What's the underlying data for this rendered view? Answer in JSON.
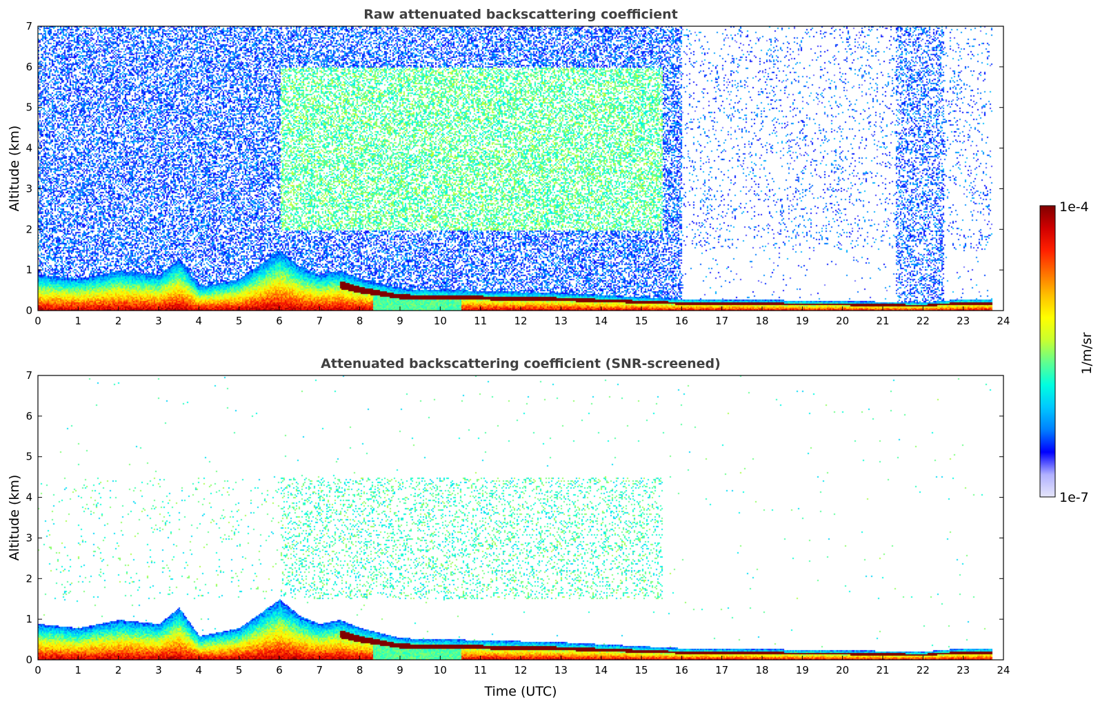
{
  "chart_data": [
    {
      "type": "heatmap",
      "title": "Raw attenuated backscattering coefficient",
      "xlabel": "",
      "ylabel": "Altitude (km)",
      "xlim": [
        0,
        24
      ],
      "ylim": [
        0,
        7
      ],
      "xticks": [
        "0",
        "1",
        "2",
        "3",
        "4",
        "5",
        "6",
        "7",
        "8",
        "9",
        "10",
        "11",
        "12",
        "13",
        "14",
        "15",
        "16",
        "17",
        "18",
        "19",
        "20",
        "21",
        "22",
        "23",
        "24"
      ],
      "yticks": [
        "0",
        "1",
        "2",
        "3",
        "4",
        "5",
        "6",
        "7"
      ],
      "boundary_layer_top_km": [
        [
          0,
          0.9
        ],
        [
          1,
          0.8
        ],
        [
          2,
          1.0
        ],
        [
          3,
          0.9
        ],
        [
          3.5,
          1.3
        ],
        [
          4,
          0.6
        ],
        [
          5,
          0.8
        ],
        [
          6,
          1.5
        ],
        [
          6.5,
          1.1
        ],
        [
          7,
          0.9
        ],
        [
          7.5,
          1.0
        ],
        [
          8,
          0.8
        ],
        [
          9,
          0.55
        ],
        [
          11,
          0.5
        ],
        [
          13,
          0.45
        ],
        [
          14,
          0.4
        ],
        [
          16,
          0.3
        ],
        [
          18,
          0.28
        ],
        [
          20,
          0.25
        ],
        [
          22,
          0.22
        ],
        [
          23,
          0.3
        ],
        [
          23.7,
          0.3
        ]
      ],
      "aerosol_layer_km": [
        2,
        6
      ],
      "noise_band_hours": [
        21.3,
        22.5
      ]
    },
    {
      "type": "heatmap",
      "title": "Attenuated backscattering coefficient (SNR-screened)",
      "xlabel": "Time (UTC)",
      "ylabel": "Altitude (km)",
      "xlim": [
        0,
        24
      ],
      "ylim": [
        0,
        7
      ],
      "xticks": [
        "0",
        "1",
        "2",
        "3",
        "4",
        "5",
        "6",
        "7",
        "8",
        "9",
        "10",
        "11",
        "12",
        "13",
        "14",
        "15",
        "16",
        "17",
        "18",
        "19",
        "20",
        "21",
        "22",
        "23",
        "24"
      ],
      "yticks": [
        "0",
        "1",
        "2",
        "3",
        "4",
        "5",
        "6",
        "7"
      ],
      "boundary_layer_top_km": [
        [
          0,
          0.9
        ],
        [
          1,
          0.8
        ],
        [
          2,
          1.0
        ],
        [
          3,
          0.9
        ],
        [
          3.5,
          1.3
        ],
        [
          4,
          0.6
        ],
        [
          5,
          0.8
        ],
        [
          6,
          1.5
        ],
        [
          6.5,
          1.1
        ],
        [
          7,
          0.9
        ],
        [
          7.5,
          1.0
        ],
        [
          8,
          0.8
        ],
        [
          9,
          0.55
        ],
        [
          11,
          0.5
        ],
        [
          13,
          0.45
        ],
        [
          14,
          0.4
        ],
        [
          16,
          0.3
        ],
        [
          18,
          0.28
        ],
        [
          20,
          0.25
        ],
        [
          22,
          0.22
        ],
        [
          23,
          0.3
        ],
        [
          23.7,
          0.3
        ]
      ],
      "aerosol_layer_km": [
        1.5,
        4.5
      ]
    }
  ],
  "colorbar": {
    "label": "1/m/sr",
    "max_label": "1e-4",
    "min_label": "1e-7",
    "colormap": [
      "#e6e6fa",
      "#b0b0ff",
      "#0000ff",
      "#0080ff",
      "#00c8ff",
      "#00ffe0",
      "#60ff90",
      "#c8ff30",
      "#ffff00",
      "#ffc000",
      "#ff7000",
      "#ff2000",
      "#d00000",
      "#800000"
    ]
  }
}
